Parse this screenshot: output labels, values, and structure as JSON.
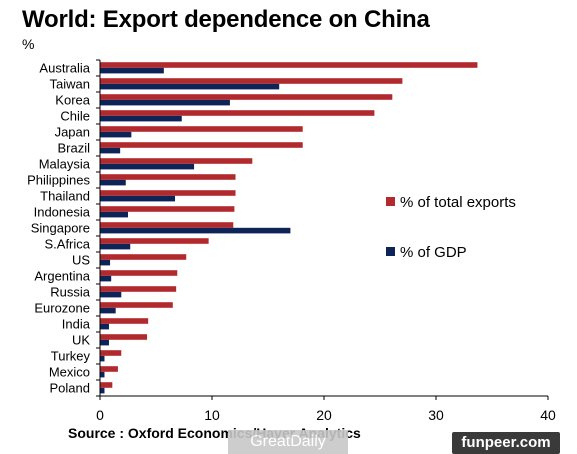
{
  "header": {
    "title": "World: Export dependence on China",
    "unit": "%"
  },
  "source": "Source : Oxford Economics/Haver Analytics",
  "watermarks": {
    "left": "GreatDaily",
    "right": "funpeer.com"
  },
  "chart_data": {
    "type": "bar",
    "orientation": "horizontal",
    "title": "World: Export dependence on China",
    "unit": "%",
    "categories": [
      "Australia",
      "Taiwan",
      "Korea",
      "Chile",
      "Japan",
      "Brazil",
      "Malaysia",
      "Philippines",
      "Thailand",
      "Indonesia",
      "Singapore",
      "S.Africa",
      "US",
      "Argentina",
      "Russia",
      "Eurozone",
      "India",
      "UK",
      "Turkey",
      "Mexico",
      "Poland"
    ],
    "series": [
      {
        "name": "% of total exports",
        "color": "#b22a2e",
        "values": [
          33.7,
          27.0,
          26.1,
          24.5,
          18.1,
          18.1,
          13.6,
          12.1,
          12.1,
          12.0,
          11.9,
          9.7,
          7.7,
          6.9,
          6.8,
          6.5,
          4.3,
          4.2,
          1.9,
          1.6,
          1.1
        ]
      },
      {
        "name": "% of GDP",
        "color": "#0e2356",
        "values": [
          5.7,
          16.0,
          11.6,
          7.3,
          2.8,
          1.8,
          8.4,
          2.3,
          6.7,
          2.5,
          17.0,
          2.7,
          0.9,
          1.0,
          1.9,
          1.4,
          0.8,
          0.8,
          0.4,
          0.4,
          0.4
        ]
      }
    ],
    "xlim": [
      0,
      40
    ],
    "xticks": [
      0,
      10,
      20,
      30,
      40
    ],
    "legend_position": "right",
    "grid": false
  }
}
